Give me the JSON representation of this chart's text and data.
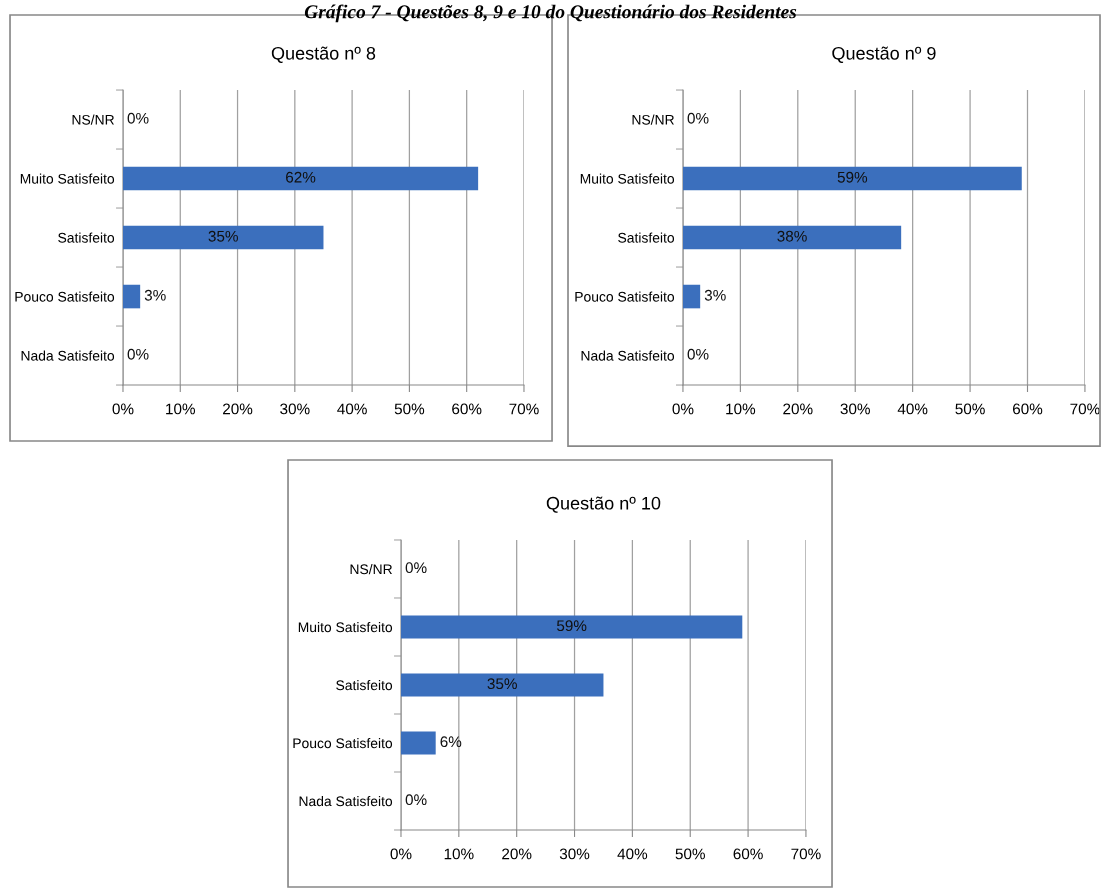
{
  "chart_data": [
    {
      "type": "bar",
      "orientation": "horizontal",
      "title": "Questão nº 8",
      "annotations": [
        "Gráfico 7 - Questões 8, 9 e 10 do Questionário dos Residentes"
      ],
      "categories": [
        "NS/NR",
        "Muito Satisfeito",
        "Satisfeito",
        "Pouco Satisfeito",
        "Nada Satisfeito"
      ],
      "values": [
        0,
        62,
        35,
        3,
        0
      ],
      "value_labels": [
        "0%",
        "62%",
        "35%",
        "3%",
        "0%"
      ],
      "color": "#3b6fbd",
      "xlim": [
        0,
        70
      ],
      "xticks": [
        {
          "value": 0,
          "label": "0%"
        },
        {
          "value": 10,
          "label": "10%"
        },
        {
          "value": 20,
          "label": "20%"
        },
        {
          "value": 30,
          "label": "30%"
        },
        {
          "value": 40,
          "label": "40%"
        },
        {
          "value": 50,
          "label": "50%"
        },
        {
          "value": 60,
          "label": "60%"
        },
        {
          "value": 70,
          "label": "70%"
        }
      ],
      "grid": "x",
      "legend": false
    },
    {
      "type": "bar",
      "orientation": "horizontal",
      "title": "Questão nº 9",
      "categories": [
        "NS/NR",
        "Muito Satisfeito",
        "Satisfeito",
        "Pouco Satisfeito",
        "Nada Satisfeito"
      ],
      "values": [
        0,
        59,
        38,
        3,
        0
      ],
      "value_labels": [
        "0%",
        "59%",
        "38%",
        "3%",
        "0%"
      ],
      "color": "#3b6fbd",
      "xlim": [
        0,
        70
      ],
      "xticks": [
        {
          "value": 0,
          "label": "0%"
        },
        {
          "value": 10,
          "label": "10%"
        },
        {
          "value": 20,
          "label": "20%"
        },
        {
          "value": 30,
          "label": "30%"
        },
        {
          "value": 40,
          "label": "40%"
        },
        {
          "value": 50,
          "label": "50%"
        },
        {
          "value": 60,
          "label": "60%"
        },
        {
          "value": 70,
          "label": "70%"
        }
      ],
      "grid": "x",
      "legend": false
    },
    {
      "type": "bar",
      "orientation": "horizontal",
      "title": "Questão nº 10",
      "categories": [
        "NS/NR",
        "Muito Satisfeito",
        "Satisfeito",
        "Pouco Satisfeito",
        "Nada Satisfeito"
      ],
      "values": [
        0,
        59,
        35,
        6,
        0
      ],
      "value_labels": [
        "0%",
        "59%",
        "35%",
        "6%",
        "0%"
      ],
      "color": "#3b6fbd",
      "xlim": [
        0,
        70
      ],
      "xticks": [
        {
          "value": 0,
          "label": "0%"
        },
        {
          "value": 10,
          "label": "10%"
        },
        {
          "value": 20,
          "label": "20%"
        },
        {
          "value": 30,
          "label": "30%"
        },
        {
          "value": 40,
          "label": "40%"
        },
        {
          "value": 50,
          "label": "50%"
        },
        {
          "value": 60,
          "label": "60%"
        },
        {
          "value": 70,
          "label": "70%"
        }
      ],
      "grid": "x",
      "legend": false
    }
  ]
}
